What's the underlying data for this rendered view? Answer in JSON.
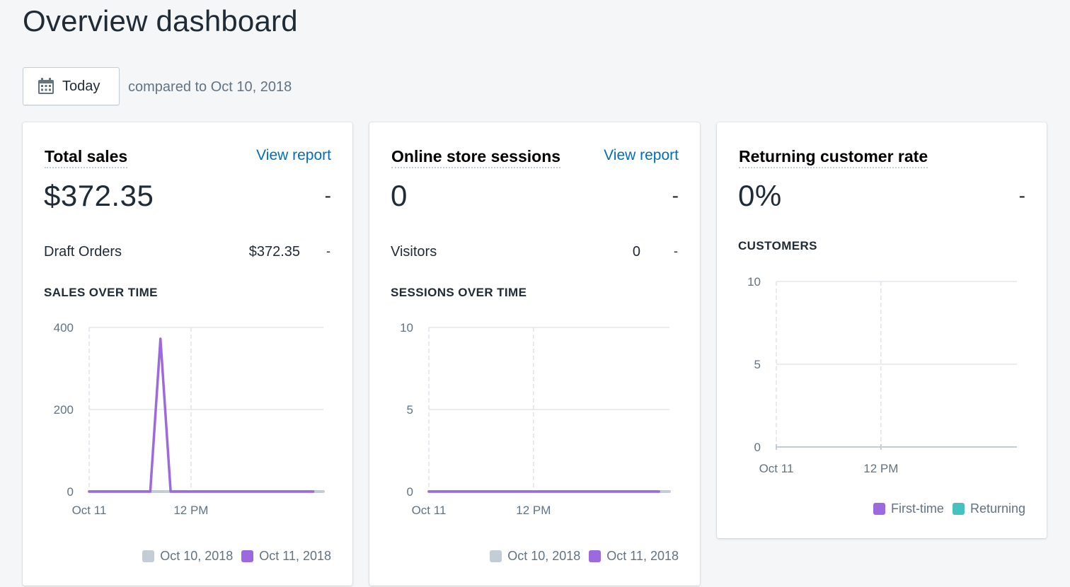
{
  "page": {
    "title": "Overview dashboard",
    "date_button": "Today",
    "compare_text": "compared to Oct 10, 2018"
  },
  "colors": {
    "accent_purple": "#9c6ade",
    "returning_teal": "#47c1bf",
    "previous_gray": "#c4cdd5",
    "link_blue": "#006fbb"
  },
  "cards": {
    "total_sales": {
      "title": "Total sales",
      "link": "View report",
      "value": "$372.35",
      "change": "-",
      "row": {
        "label": "Draft Orders",
        "value": "$372.35",
        "change": "-"
      },
      "section": "SALES OVER TIME",
      "legend": [
        "Oct 10, 2018",
        "Oct 11, 2018"
      ]
    },
    "sessions": {
      "title": "Online store sessions",
      "link": "View report",
      "value": "0",
      "change": "-",
      "row": {
        "label": "Visitors",
        "value": "0",
        "change": "-"
      },
      "section": "SESSIONS OVER TIME",
      "legend": [
        "Oct 10, 2018",
        "Oct 11, 2018"
      ]
    },
    "returning": {
      "title": "Returning customer rate",
      "value": "0%",
      "change": "-",
      "section": "CUSTOMERS",
      "legend": [
        "First-time",
        "Returning"
      ]
    }
  },
  "chart_data": [
    {
      "id": "sales",
      "type": "line",
      "title": "SALES OVER TIME",
      "x_ticks": [
        "Oct 11",
        "12 PM"
      ],
      "ylim": [
        0,
        400
      ],
      "y_ticks": [
        0,
        200,
        400
      ],
      "grid": true,
      "series": [
        {
          "name": "Oct 10, 2018",
          "color": "#c4cdd5",
          "x": [
            0,
            23
          ],
          "y": [
            0,
            0
          ]
        },
        {
          "name": "Oct 11, 2018",
          "color": "#9c6ade",
          "x": [
            0,
            6,
            7,
            8,
            22
          ],
          "y": [
            0,
            0,
            372.35,
            0,
            0
          ]
        }
      ],
      "legend_position": "bottom-right"
    },
    {
      "id": "sessions",
      "type": "line",
      "title": "SESSIONS OVER TIME",
      "x_ticks": [
        "Oct 11",
        "12 PM"
      ],
      "ylim": [
        0,
        10
      ],
      "y_ticks": [
        0,
        5,
        10
      ],
      "grid": true,
      "series": [
        {
          "name": "Oct 10, 2018",
          "color": "#c4cdd5",
          "x": [
            0,
            23
          ],
          "y": [
            0,
            0
          ]
        },
        {
          "name": "Oct 11, 2018",
          "color": "#9c6ade",
          "x": [
            0,
            22
          ],
          "y": [
            0,
            0
          ]
        }
      ],
      "legend_position": "bottom-right"
    },
    {
      "id": "customers",
      "type": "bar",
      "title": "CUSTOMERS",
      "x_ticks": [
        "Oct 11",
        "12 PM"
      ],
      "ylim": [
        0,
        10
      ],
      "y_ticks": [
        0,
        5,
        10
      ],
      "grid": true,
      "series": [
        {
          "name": "First-time",
          "color": "#9c6ade",
          "values": []
        },
        {
          "name": "Returning",
          "color": "#47c1bf",
          "values": []
        }
      ],
      "legend_position": "bottom-right"
    }
  ]
}
